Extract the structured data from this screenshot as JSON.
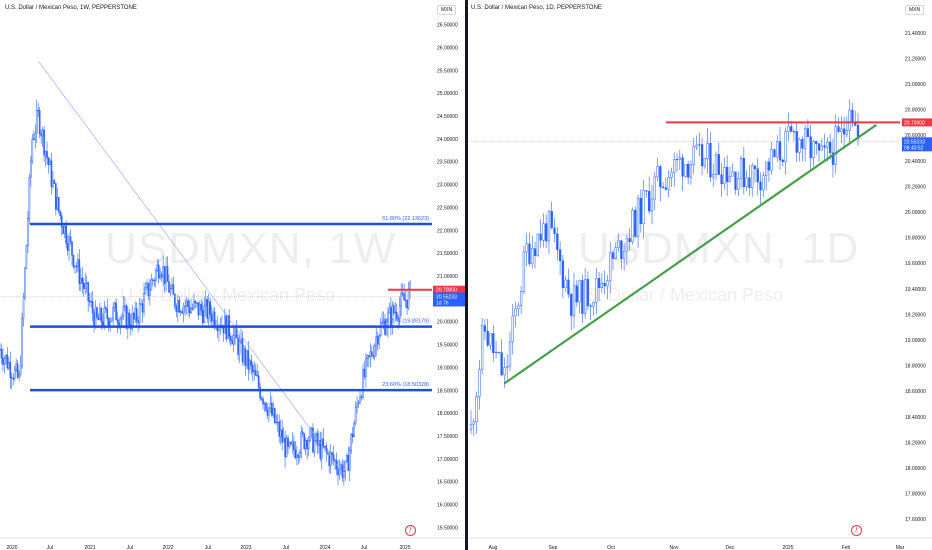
{
  "left": {
    "title": "U.S. Dollar / Mexican Peso, 1W, PEPPERSTONE",
    "currency": "MXN",
    "watermark_symbol": "USDMXN, 1W",
    "watermark_name": "U.S. Dollar / Mexican Peso",
    "price_labels": [
      "26.50000",
      "26.00000",
      "25.50000",
      "25.00000",
      "24.50000",
      "24.00000",
      "23.50000",
      "23.00000",
      "22.50000",
      "22.00000",
      "21.50000",
      "21.00000",
      "20.50000",
      "20.00000",
      "19.50000",
      "19.00000",
      "18.50000",
      "18.00000",
      "17.50000",
      "17.00000",
      "16.50000",
      "16.00000",
      "15.50000"
    ],
    "time_labels": [
      "2020",
      "Jul",
      "2021",
      "Jul",
      "2022",
      "Jul",
      "2023",
      "Jul",
      "2024",
      "Jul",
      "2025"
    ],
    "fib_labels": [
      "61.80% (22.13623)",
      "38.20% (19.89179)",
      "23.60% (18.50328)"
    ],
    "tag_red": "20.70000",
    "tag_blue_price": "20.55233",
    "tag_blue_time": "1d 7h"
  },
  "right": {
    "title": "U.S. Dollar / Mexican Peso, 1D, PEPPERSTONE",
    "currency": "MXN",
    "watermark_symbol": "USDMXN, 1D",
    "watermark_name": "U.S. Dollar / Mexican Peso",
    "price_labels": [
      "21.40000",
      "21.20000",
      "21.00000",
      "20.80000",
      "20.60000",
      "20.40000",
      "20.20000",
      "20.00000",
      "19.80000",
      "19.60000",
      "19.40000",
      "19.20000",
      "19.00000",
      "18.80000",
      "18.60000",
      "18.40000",
      "18.20000",
      "18.00000",
      "17.80000",
      "17.60000"
    ],
    "time_labels": [
      "Aug",
      "Sep",
      "Oct",
      "Nov",
      "Dec",
      "2025",
      "Feb",
      "Mar"
    ],
    "tag_red": "20.70000",
    "tag_blue_price": "20.55233",
    "tag_blue_time": "06:43:52"
  },
  "chart_data": [
    {
      "type": "candlestick",
      "symbol": "USDMXN",
      "interval": "1W",
      "ylim": [
        15.4,
        26.6
      ],
      "x": [
        "2019-10",
        "2020-01",
        "2020-03",
        "2020-04",
        "2020-07",
        "2020-10",
        "2021-01",
        "2021-04",
        "2021-07",
        "2021-11",
        "2022-01",
        "2022-04",
        "2022-07",
        "2022-10",
        "2023-01",
        "2023-04",
        "2023-07",
        "2023-10",
        "2024-01",
        "2024-04",
        "2024-06",
        "2024-09",
        "2024-12",
        "2025-02"
      ],
      "close": [
        19.4,
        18.7,
        24.0,
        24.5,
        22.5,
        21.2,
        20.0,
        20.2,
        20.0,
        21.3,
        20.5,
        20.3,
        20.2,
        19.8,
        19.0,
        18.1,
        17.1,
        17.5,
        17.1,
        16.7,
        18.4,
        19.8,
        20.3,
        20.6
      ],
      "levels": [
        {
          "label": "61.80% (22.13623)",
          "value": 22.13623
        },
        {
          "label": "38.20% (19.89179)",
          "value": 19.89179
        },
        {
          "label": "23.60% (18.50328)",
          "value": 18.50328
        },
        {
          "label": "20.70000",
          "value": 20.7
        }
      ],
      "current_price": 20.55233
    },
    {
      "type": "candlestick",
      "symbol": "USDMXN",
      "interval": "1D",
      "ylim": [
        17.5,
        21.5
      ],
      "x": [
        "2024-07-29",
        "2024-08-05",
        "2024-08-15",
        "2024-08-26",
        "2024-09-06",
        "2024-09-18",
        "2024-09-30",
        "2024-10-14",
        "2024-10-28",
        "2024-11-11",
        "2024-11-25",
        "2024-12-09",
        "2024-12-20",
        "2025-01-06",
        "2025-01-20",
        "2025-01-30",
        "2025-02-03",
        "2025-02-07"
      ],
      "close": [
        18.3,
        19.1,
        18.7,
        19.7,
        19.9,
        19.3,
        19.4,
        19.8,
        20.2,
        20.4,
        20.4,
        20.3,
        20.3,
        20.6,
        20.4,
        20.6,
        20.9,
        20.55
      ],
      "levels": [
        {
          "label": "20.70000",
          "value": 20.7
        }
      ],
      "trendline": [
        {
          "x": "2024-08-15",
          "y": 18.66
        },
        {
          "x": "2025-02-16",
          "y": 20.68
        }
      ],
      "current_price": 20.55233
    }
  ],
  "colors": {
    "candle": "#2962ff",
    "fib_line": "#1e4fd8",
    "resistance": "#f23645",
    "trendline": "#43a047",
    "axis_text": "#131722"
  }
}
